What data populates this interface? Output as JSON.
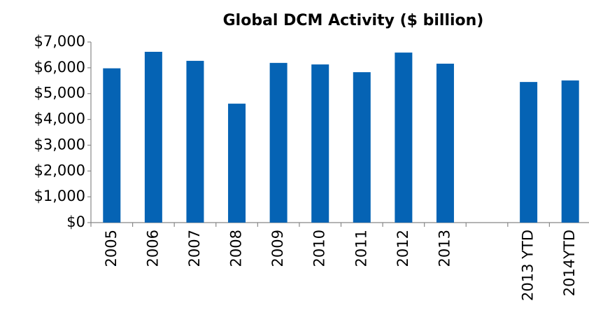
{
  "chart_data": {
    "type": "bar",
    "title": "Global DCM Activity ($ billion)",
    "categories": [
      "2005",
      "2006",
      "2007",
      "2008",
      "2009",
      "2010",
      "2011",
      "2012",
      "2013",
      null,
      "2013 YTD",
      "2014YTD"
    ],
    "values": [
      5980,
      6620,
      6270,
      4610,
      6190,
      6130,
      5830,
      6590,
      6160,
      null,
      5450,
      5510
    ],
    "color": "#0563b4",
    "ylim": [
      0,
      7000
    ],
    "yticks": [
      {
        "value": 0,
        "label": "$0"
      },
      {
        "value": 1000,
        "label": "$1,000"
      },
      {
        "value": 2000,
        "label": "$2,000"
      },
      {
        "value": 3000,
        "label": "$3,000"
      },
      {
        "value": 4000,
        "label": "$4,000"
      },
      {
        "value": 5000,
        "label": "$5,000"
      },
      {
        "value": 6000,
        "label": "$6,000"
      },
      {
        "value": 7000,
        "label": "$7,000"
      }
    ],
    "grid": false
  }
}
